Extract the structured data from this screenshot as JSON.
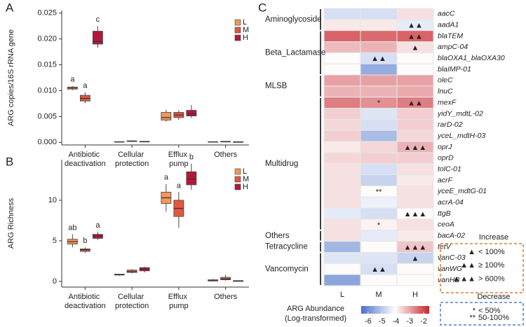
{
  "chart_data": [
    {
      "type": "box",
      "panel": "A",
      "ylabel": "ARG copies/16S rRNA gene",
      "categories": [
        "Antibiotic deactivation",
        "Cellular protection",
        "Efflux pump",
        "Others"
      ],
      "ylim": [
        -0.0005,
        0.0255
      ],
      "yticks": [
        {
          "value": 0,
          "label": "0.000"
        },
        {
          "value": 0.005,
          "label": "0.005"
        },
        {
          "value": 0.01,
          "label": "0.010"
        },
        {
          "value": 0.015,
          "label": "0.015"
        },
        {
          "value": 0.02,
          "label": "0.020"
        },
        {
          "value": 0.025,
          "label": "0.025"
        }
      ],
      "legend": "upper right",
      "series": [
        {
          "name": "L",
          "color": "#f0975a",
          "min": [
            0.0101,
            0.0,
            0.004,
            0.0
          ],
          "q1": [
            0.0103,
            0.0001,
            0.0043,
            0.0001
          ],
          "median": [
            0.0105,
            0.0001,
            0.0048,
            0.0001
          ],
          "q3": [
            0.0107,
            0.0001,
            0.0058,
            0.0001
          ],
          "max": [
            0.0109,
            0.0002,
            0.0063,
            0.0002
          ],
          "letters": [
            "a",
            null,
            null,
            null
          ]
        },
        {
          "name": "M",
          "color": "#e0573f",
          "min": [
            0.0076,
            0.0001,
            0.0043,
            0.0001
          ],
          "q1": [
            0.008,
            0.0002,
            0.0048,
            0.0001
          ],
          "median": [
            0.0085,
            0.0002,
            0.0053,
            0.0001
          ],
          "q3": [
            0.0091,
            0.0003,
            0.0058,
            0.0002
          ],
          "max": [
            0.0097,
            0.0004,
            0.0062,
            0.0002
          ],
          "letters": [
            "a",
            null,
            null,
            null
          ]
        },
        {
          "name": "H",
          "color": "#b5173a",
          "min": [
            0.0183,
            0.0001,
            0.0047,
            0.0
          ],
          "q1": [
            0.019,
            0.0001,
            0.0051,
            0.0
          ],
          "median": [
            0.0195,
            0.0001,
            0.0055,
            0.0001
          ],
          "q3": [
            0.0215,
            0.0002,
            0.0062,
            0.0001
          ],
          "max": [
            0.0225,
            0.0002,
            0.0072,
            0.0001
          ],
          "letters": [
            "c",
            null,
            null,
            null
          ]
        }
      ]
    },
    {
      "type": "box",
      "panel": "B",
      "ylabel": "ARG Richness",
      "categories": [
        "Antibiotic deactivation",
        "Cellular protection",
        "Efflux pump",
        "Others"
      ],
      "ylim": [
        -0.7,
        15
      ],
      "yticks": [
        0,
        5,
        10
      ],
      "legend": "upper right",
      "series": [
        {
          "name": "L",
          "color": "#f0975a",
          "min": [
            4.2,
            0.7,
            8.6,
            0
          ],
          "q1": [
            4.6,
            0.8,
            9.6,
            0.05
          ],
          "median": [
            4.9,
            0.8,
            10.3,
            0.1
          ],
          "q3": [
            5.2,
            0.9,
            11.0,
            0.2
          ],
          "max": [
            5.8,
            0.9,
            12.0,
            0.3
          ],
          "letters": [
            "ab",
            null,
            "a",
            null
          ]
        },
        {
          "name": "M",
          "color": "#e0573f",
          "min": [
            3.5,
            1.0,
            6.6,
            0.1
          ],
          "q1": [
            3.7,
            1.1,
            8.0,
            0.2
          ],
          "median": [
            3.9,
            1.2,
            9.0,
            0.3
          ],
          "q3": [
            4.0,
            1.4,
            10.0,
            0.5
          ],
          "max": [
            4.2,
            1.5,
            11.0,
            0.8
          ],
          "letters": [
            "b",
            null,
            "a",
            null
          ]
        },
        {
          "name": "H",
          "color": "#b5173a",
          "min": [
            5.1,
            1.1,
            11.3,
            0
          ],
          "q1": [
            5.3,
            1.3,
            11.9,
            0
          ],
          "median": [
            5.6,
            1.5,
            12.6,
            0.05
          ],
          "q3": [
            5.8,
            1.7,
            13.5,
            0.1
          ],
          "max": [
            6.1,
            1.8,
            14.5,
            0.1
          ],
          "letters": [
            "a",
            null,
            "b",
            null
          ]
        }
      ]
    },
    {
      "type": "heatmap",
      "panel": "C",
      "columns": [
        "L",
        "M",
        "H"
      ],
      "clim": [
        -6.5,
        -1.6
      ],
      "colors": [
        "#4a72c8",
        "#ffffff",
        "#c8242c"
      ],
      "colorbar": {
        "title": [
          "ARG Abundance",
          "(Log-transformed)"
        ],
        "ticks": [
          -6,
          -5,
          -4,
          -3,
          -2
        ]
      },
      "groups": [
        {
          "name": "Aminoglycoside",
          "genes": [
            {
              "name": "aacC",
              "values": [
                -4.6,
                -4.6,
                -3.7
              ],
              "symbols": [
                null,
                null,
                null
              ]
            },
            {
              "name": "aadA1",
              "values": [
                -3.8,
                -3.8,
                -4.4
              ],
              "symbols": [
                null,
                null,
                "▲▲"
              ]
            }
          ]
        },
        {
          "name": "Beta_Lactamase",
          "genes": [
            {
              "name": "blaTEM",
              "values": [
                -2.3,
                -2.4,
                -2.3
              ],
              "symbols": [
                null,
                null,
                "▲▲"
              ]
            },
            {
              "name": "ampC-04",
              "values": [
                -3.3,
                -3.2,
                -3.7
              ],
              "symbols": [
                null,
                null,
                "▲"
              ]
            },
            {
              "name": "blaOXA1_blaOXA30",
              "values": [
                -4.0,
                -4.6,
                -4.0
              ],
              "symbols": [
                null,
                "▲▲",
                null
              ]
            },
            {
              "name": "blaIMP-01",
              "values": [
                -4.0,
                -5.5,
                -4.0
              ],
              "symbols": [
                null,
                null,
                null
              ]
            }
          ]
        },
        {
          "name": "MLSB",
          "genes": [
            {
              "name": "oleC",
              "values": [
                -3.0,
                -3.0,
                -3.0
              ],
              "symbols": [
                null,
                null,
                null
              ]
            },
            {
              "name": "lnuC",
              "values": [
                -3.2,
                -3.2,
                -3.1
              ],
              "symbols": [
                null,
                null,
                null
              ]
            }
          ]
        },
        {
          "name": "Multidrug",
          "genes": [
            {
              "name": "mexF",
              "values": [
                -2.6,
                -2.8,
                -2.6
              ],
              "symbols": [
                null,
                "*",
                "▲▲"
              ]
            },
            {
              "name": "yidY_mdtL-02",
              "values": [
                -3.5,
                -4.5,
                -3.5
              ],
              "symbols": [
                null,
                null,
                null
              ]
            },
            {
              "name": "rarD-02",
              "values": [
                -3.6,
                -4.6,
                -3.5
              ],
              "symbols": [
                null,
                null,
                null
              ]
            },
            {
              "name": "yceL_mdtH-03",
              "values": [
                -3.5,
                -5.2,
                -3.6
              ],
              "symbols": [
                null,
                null,
                null
              ]
            },
            {
              "name": "oprJ",
              "values": [
                -3.8,
                -3.6,
                -3.2
              ],
              "symbols": [
                null,
                null,
                "▲▲▲"
              ]
            },
            {
              "name": "oprD",
              "values": [
                -3.6,
                -3.5,
                -3.5
              ],
              "symbols": [
                null,
                null,
                null
              ]
            },
            {
              "name": "tolC-01",
              "values": [
                -3.7,
                -4.6,
                -3.7
              ],
              "symbols": [
                null,
                null,
                null
              ]
            },
            {
              "name": "acrF",
              "values": [
                -3.7,
                -4.8,
                -3.8
              ],
              "symbols": [
                null,
                null,
                null
              ]
            },
            {
              "name": "yceE_mdtG-01",
              "values": [
                -3.7,
                -4.0,
                -3.7
              ],
              "symbols": [
                null,
                "**",
                null
              ]
            },
            {
              "name": "acrA-04",
              "values": [
                -3.7,
                -4.3,
                -3.7
              ],
              "symbols": [
                null,
                null,
                null
              ]
            },
            {
              "name": "ttgB",
              "values": [
                -4.4,
                -4.6,
                -4.0
              ],
              "symbols": [
                null,
                null,
                "▲▲▲"
              ]
            },
            {
              "name": "ceoA",
              "values": [
                -3.7,
                -3.9,
                -3.7
              ],
              "symbols": [
                null,
                "*",
                null
              ]
            }
          ]
        },
        {
          "name": "Others",
          "genes": [
            {
              "name": "bacA-02",
              "values": [
                -3.7,
                -4.4,
                -3.8
              ],
              "symbols": [
                null,
                null,
                null
              ]
            }
          ]
        },
        {
          "name": "Tetracycline",
          "genes": [
            {
              "name": "tetV",
              "values": [
                -5.3,
                -4.0,
                -3.4
              ],
              "symbols": [
                null,
                null,
                "▲▲▲"
              ]
            }
          ]
        },
        {
          "name": "Vancomycin",
          "genes": [
            {
              "name": "vanC-03",
              "values": [
                -4.5,
                -4.5,
                -4.8
              ],
              "symbols": [
                null,
                null,
                "▲"
              ]
            },
            {
              "name": "vanWG",
              "values": [
                -4.0,
                -4.6,
                -4.0
              ],
              "symbols": [
                null,
                "▲▲",
                null
              ]
            },
            {
              "name": "vanHB",
              "values": [
                -5.6,
                -4.0,
                -4.0
              ],
              "symbols": [
                null,
                null,
                null
              ]
            }
          ]
        }
      ],
      "increase": {
        "title": "Increase",
        "color": "#e07b30",
        "items": [
          {
            "symbol": "▲",
            "label": "< 100%"
          },
          {
            "symbol": "▲▲",
            "label": "≥ 100%"
          },
          {
            "symbol": "▲▲▲",
            "label": "> 600%"
          }
        ]
      },
      "decrease": {
        "title": "Decrease",
        "color": "#4a7fd6",
        "items": [
          {
            "symbol": "*",
            "label": "< 50%"
          },
          {
            "symbol": "**",
            "label": "50-100%"
          }
        ]
      }
    }
  ]
}
